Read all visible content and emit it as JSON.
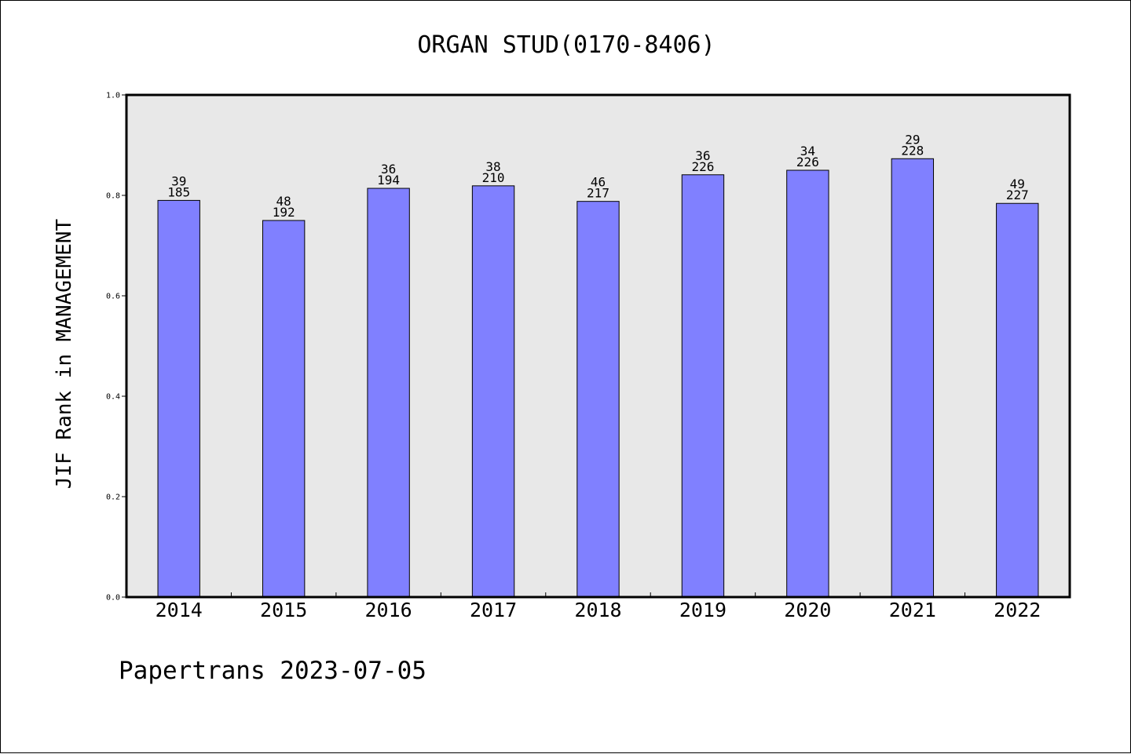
{
  "chart_data": {
    "type": "bar",
    "title": "ORGAN STUD(0170-8406)",
    "xlabel": "",
    "ylabel": "JIF Rank in MANAGEMENT",
    "ylim": [
      0,
      1.0
    ],
    "yticks": [
      "0.0",
      "0.2",
      "0.4",
      "0.6",
      "0.8",
      "1.0"
    ],
    "categories": [
      "2014",
      "2015",
      "2016",
      "2017",
      "2018",
      "2019",
      "2020",
      "2021",
      "2022"
    ],
    "values": [
      0.79,
      0.75,
      0.814,
      0.819,
      0.788,
      0.841,
      0.85,
      0.873,
      0.784
    ],
    "rank": [
      "39",
      "48",
      "36",
      "38",
      "46",
      "36",
      "34",
      "29",
      "49"
    ],
    "total": [
      "185",
      "192",
      "194",
      "210",
      "217",
      "226",
      "226",
      "228",
      "227"
    ],
    "bar_color": "#8080ff",
    "plot_background": "#e8e8e8",
    "grid": false
  },
  "footer": "Papertrans 2023-07-05"
}
